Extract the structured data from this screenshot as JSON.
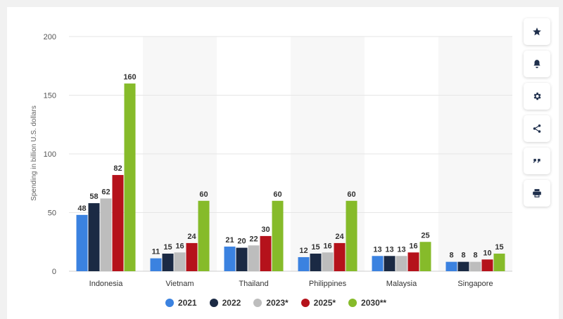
{
  "chart_data": {
    "type": "bar",
    "ylabel": "Spending in billion U.S. dollars",
    "ylim": [
      0,
      200
    ],
    "yticks": [
      0,
      50,
      100,
      150,
      200
    ],
    "categories": [
      "Indonesia",
      "Vietnam",
      "Thailand",
      "Philippines",
      "Malaysia",
      "Singapore"
    ],
    "series": [
      {
        "name": "2021",
        "color": "#3b82e0",
        "values": [
          48,
          11,
          21,
          12,
          13,
          8
        ]
      },
      {
        "name": "2022",
        "color": "#1b2a44",
        "values": [
          58,
          15,
          20,
          15,
          13,
          8
        ]
      },
      {
        "name": "2023*",
        "color": "#bdbdbd",
        "values": [
          62,
          16,
          22,
          16,
          13,
          8
        ]
      },
      {
        "name": "2025*",
        "color": "#b5121b",
        "values": [
          82,
          24,
          30,
          24,
          16,
          10
        ]
      },
      {
        "name": "2030**",
        "color": "#86bb2a",
        "values": [
          160,
          60,
          60,
          60,
          25,
          15
        ]
      }
    ],
    "grid": true,
    "legend_position": "bottom"
  },
  "sidebar": {
    "buttons": [
      {
        "icon": "star-icon"
      },
      {
        "icon": "bell-icon"
      },
      {
        "icon": "gear-icon"
      },
      {
        "icon": "share-icon"
      },
      {
        "icon": "quote-icon"
      },
      {
        "icon": "print-icon"
      }
    ]
  }
}
